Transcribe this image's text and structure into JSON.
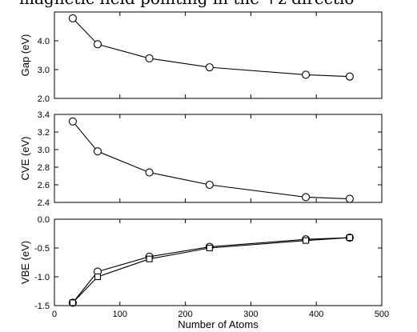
{
  "header_text": "magnetic field pointing in the +z directio",
  "chart_data": [
    {
      "type": "line",
      "ylabel": "Gap (eV)",
      "xlim": [
        0,
        500
      ],
      "ylim": [
        2.0,
        5.0
      ],
      "yticks": [
        "2.0",
        "3.0",
        "4.0"
      ],
      "x": [
        28,
        66,
        145,
        237,
        384,
        451
      ],
      "series": [
        {
          "marker": "circle",
          "values": [
            4.78,
            3.88,
            3.39,
            3.08,
            2.82,
            2.76
          ]
        }
      ],
      "grid": false
    },
    {
      "type": "line",
      "ylabel": "CVE (eV)",
      "xlim": [
        0,
        500
      ],
      "ylim": [
        2.4,
        3.4
      ],
      "yticks": [
        "2.4",
        "2.6",
        "2.8",
        "3.0",
        "3.2",
        "3.4"
      ],
      "x": [
        28,
        66,
        145,
        237,
        384,
        451
      ],
      "series": [
        {
          "marker": "circle",
          "values": [
            3.32,
            2.98,
            2.74,
            2.6,
            2.46,
            2.44
          ]
        }
      ],
      "grid": false
    },
    {
      "type": "line",
      "ylabel": "VBE (eV)",
      "xlabel": "Number of Atoms",
      "xlim": [
        0,
        500
      ],
      "ylim": [
        -1.5,
        0.0
      ],
      "yticks": [
        "-1.5",
        "-1.0",
        "-0.5",
        "0.0"
      ],
      "xticks": [
        "0",
        "100",
        "200",
        "300",
        "400",
        "500"
      ],
      "x": [
        28,
        66,
        145,
        237,
        384,
        451
      ],
      "series": [
        {
          "marker": "circle",
          "values": [
            -1.45,
            -0.91,
            -0.65,
            -0.48,
            -0.35,
            -0.32
          ]
        },
        {
          "marker": "square",
          "values": [
            -1.45,
            -1.0,
            -0.69,
            -0.5,
            -0.37,
            -0.32
          ]
        }
      ],
      "grid": false
    }
  ]
}
